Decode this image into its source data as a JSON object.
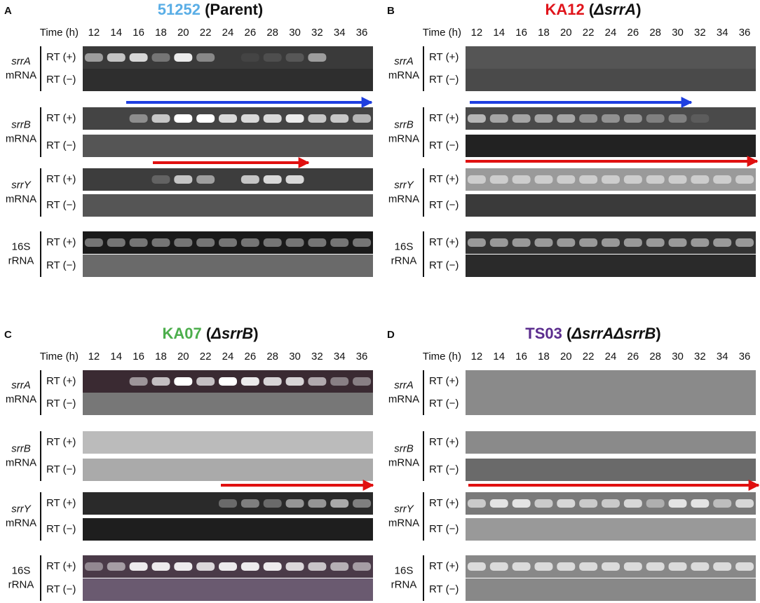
{
  "time_label": "Time (h)",
  "times": [
    12,
    14,
    16,
    18,
    20,
    22,
    24,
    26,
    28,
    30,
    32,
    34,
    36
  ],
  "rt_labels": [
    "RT (+)",
    "RT (−)"
  ],
  "genes": [
    {
      "name": "srrA",
      "kind": "mRNA"
    },
    {
      "name": "srrB",
      "kind": "mRNA"
    },
    {
      "name": "srrY",
      "kind": "mRNA"
    },
    {
      "name": "16S",
      "kind": "rRNA"
    }
  ],
  "panels": [
    {
      "letter": "A",
      "title": [
        {
          "text": "51252",
          "color": "#5aaee6"
        },
        {
          "text": " (Parent)"
        }
      ]
    },
    {
      "letter": "B",
      "title": [
        {
          "text": "KA12",
          "color": "#e0141b"
        },
        {
          "text": " ("
        },
        {
          "text": "ΔsrrA",
          "italic": true
        },
        {
          "text": ")"
        }
      ]
    },
    {
      "letter": "C",
      "title": [
        {
          "text": "KA07",
          "color": "#4cae4c"
        },
        {
          "text": " ("
        },
        {
          "text": "ΔsrrB",
          "italic": true
        },
        {
          "text": ")"
        }
      ]
    },
    {
      "letter": "D",
      "title": [
        {
          "text": "TS03",
          "color": "#5b2d8e"
        },
        {
          "text": " ("
        },
        {
          "text": "ΔsrrAΔsrrB",
          "italic": true
        },
        {
          "text": ")"
        }
      ]
    }
  ]
}
